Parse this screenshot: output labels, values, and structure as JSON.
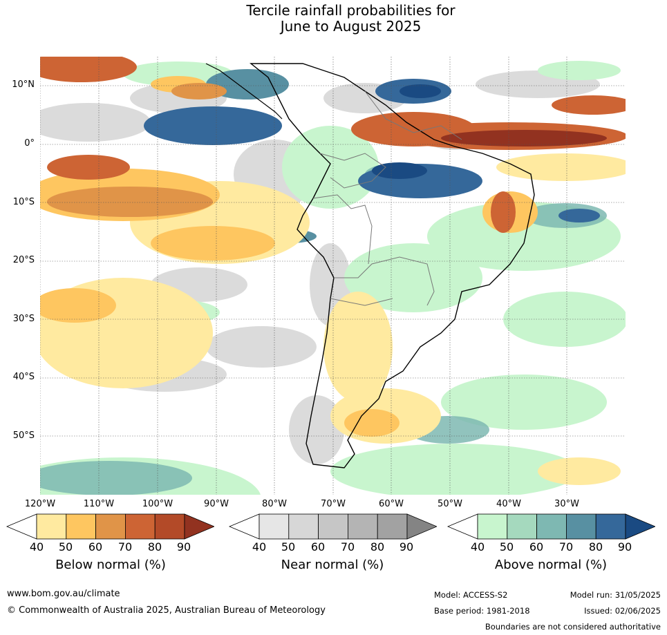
{
  "title_line1": "Tercile rainfall probabilities for",
  "title_line2": "June to August 2025",
  "lat_labels": [
    "10°N",
    "0°",
    "10°S",
    "20°S",
    "30°S",
    "40°S",
    "50°S"
  ],
  "lon_labels": [
    "120°W",
    "110°W",
    "100°W",
    "90°W",
    "80°W",
    "70°W",
    "60°W",
    "50°W",
    "40°W",
    "30°W"
  ],
  "colorbars": [
    {
      "label": "Below normal (%)",
      "ticks": [
        "40",
        "50",
        "60",
        "70",
        "80",
        "90"
      ],
      "colors": [
        "#ffffff",
        "#ffeaa0",
        "#fec660",
        "#e09448",
        "#cd6434",
        "#b34a28",
        "#923220"
      ]
    },
    {
      "label": "Near normal (%)",
      "ticks": [
        "40",
        "50",
        "60",
        "70",
        "80",
        "90"
      ],
      "colors": [
        "#ffffff",
        "#e6e6e6",
        "#d7d7d7",
        "#c6c6c6",
        "#b4b4b4",
        "#a2a2a2",
        "#848484"
      ]
    },
    {
      "label": "Above normal (%)",
      "ticks": [
        "40",
        "50",
        "60",
        "70",
        "80",
        "90"
      ],
      "colors": [
        "#ffffff",
        "#c8f5ce",
        "#a5d9be",
        "#7eb8b2",
        "#5890a2",
        "#35689a",
        "#1a4a82"
      ]
    }
  ],
  "footer": {
    "website": "www.bom.gov.au/climate",
    "copyright": "© Commonwealth of Australia 2025, Australian Bureau of Meteorology",
    "model": "Model: ACCESS-S2",
    "model_run": "Model run: 31/05/2025",
    "base_period": "Base period: 1981-2018",
    "issued": "Issued: 02/06/2025",
    "disclaimer": "Boundaries are not considered authoritative"
  }
}
